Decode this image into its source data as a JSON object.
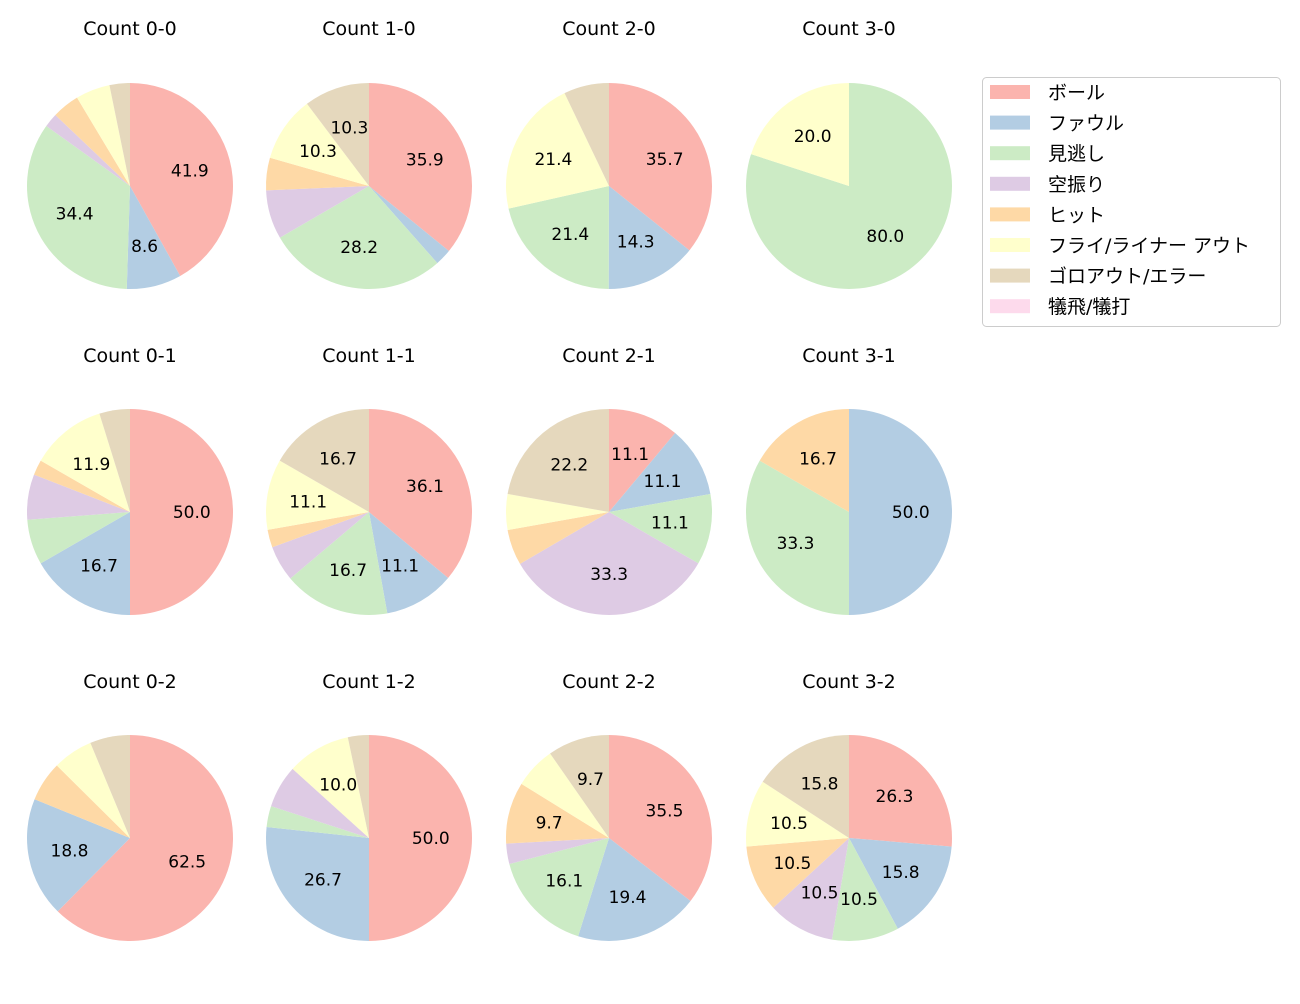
{
  "chart_data": {
    "type": "pie",
    "direction": "clockwise",
    "start": "top",
    "label_format": "percent, 1 decimal, shown for larger slices",
    "categories": [
      "ボール",
      "ファウル",
      "見逃し",
      "空振り",
      "ヒット",
      "フライ/ライナー アウト",
      "ゴロアウト/エラー",
      "犠飛/犠打"
    ],
    "colors": [
      "#fbb4ae",
      "#b3cde3",
      "#ccebc5",
      "#decbe4",
      "#fed9a6",
      "#ffffcc",
      "#e5d8bd",
      "#fddaec"
    ],
    "legend": {
      "placement": "top-right"
    },
    "pies": [
      {
        "title": "Count 0-0",
        "values": [
          41.9,
          8.6,
          34.4,
          2.2,
          4.3,
          5.4,
          3.2,
          0
        ]
      },
      {
        "title": "Count 1-0",
        "values": [
          35.9,
          2.6,
          28.2,
          7.7,
          5.1,
          10.3,
          10.3,
          0
        ]
      },
      {
        "title": "Count 2-0",
        "values": [
          35.7,
          14.3,
          21.4,
          0,
          0,
          21.4,
          7.1,
          0
        ]
      },
      {
        "title": "Count 3-0",
        "values": [
          0,
          0,
          80.0,
          0,
          0,
          20.0,
          0,
          0
        ]
      },
      {
        "title": "Count 0-1",
        "values": [
          50.0,
          16.7,
          7.1,
          7.1,
          2.4,
          11.9,
          4.8,
          0
        ]
      },
      {
        "title": "Count 1-1",
        "values": [
          36.1,
          11.1,
          16.7,
          5.6,
          2.8,
          11.1,
          16.7,
          0
        ]
      },
      {
        "title": "Count 2-1",
        "values": [
          11.1,
          11.1,
          11.1,
          33.3,
          5.6,
          5.6,
          22.2,
          0
        ]
      },
      {
        "title": "Count 3-1",
        "values": [
          0,
          50.0,
          33.3,
          0,
          16.7,
          0,
          0,
          0
        ]
      },
      {
        "title": "Count 0-2",
        "values": [
          62.5,
          18.8,
          0,
          0,
          6.3,
          6.3,
          6.3,
          0
        ]
      },
      {
        "title": "Count 1-2",
        "values": [
          50.0,
          26.7,
          3.3,
          6.7,
          0,
          10.0,
          3.3,
          0
        ]
      },
      {
        "title": "Count 2-2",
        "values": [
          35.5,
          19.4,
          16.1,
          3.2,
          9.7,
          6.5,
          9.7,
          0
        ]
      },
      {
        "title": "Count 3-2",
        "values": [
          26.3,
          15.8,
          10.5,
          10.5,
          10.5,
          10.5,
          15.8,
          0
        ]
      }
    ]
  }
}
